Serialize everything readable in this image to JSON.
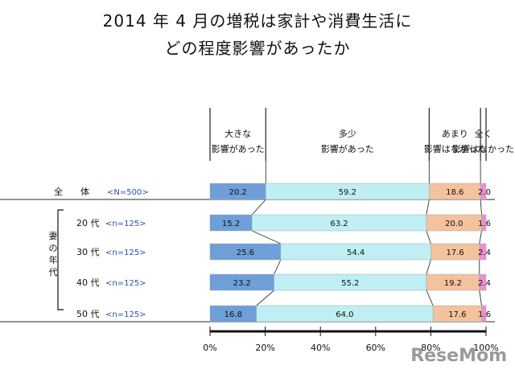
{
  "title_line1": "2014 年 4 月の増税は家計や消費生活に",
  "title_line2": "どの程度影響があったか",
  "watermark": "ReseMom",
  "chart_data": {
    "type": "bar",
    "orientation": "horizontal",
    "stacked": "percent",
    "categories_main": [
      {
        "label": "全　　体",
        "n": "<N=500>"
      },
      {
        "label": "20 代",
        "n": "<n=125>"
      },
      {
        "label": "30 代",
        "n": "<n=125>"
      },
      {
        "label": "40 代",
        "n": "<n=125>"
      },
      {
        "label": "50 代",
        "n": "<n=125>"
      }
    ],
    "group_label": "妻の年代",
    "legend_labels": [
      [
        "大きな",
        "影響があった"
      ],
      [
        "多少",
        "影響があった"
      ],
      [
        "あまり",
        "影響はなかった"
      ],
      [
        "全く",
        "影響はなかった"
      ]
    ],
    "series": [
      {
        "values": [
          20.2,
          15.2,
          25.6,
          23.2,
          16.8
        ],
        "color": "#6f9fd8"
      },
      {
        "values": [
          59.2,
          63.2,
          54.4,
          55.2,
          64.0
        ],
        "color": "#bfeff2"
      },
      {
        "values": [
          18.6,
          20.0,
          17.6,
          19.2,
          17.6
        ],
        "color": "#f4c29c"
      },
      {
        "values": [
          2.0,
          1.6,
          2.4,
          2.4,
          1.6
        ],
        "color": "#ee8fcf"
      }
    ],
    "value_labels": [
      [
        "20.2",
        "59.2",
        "18.6",
        "2.0"
      ],
      [
        "15.2",
        "63.2",
        "20.0",
        "1.6"
      ],
      [
        "25.6",
        "54.4",
        "17.6",
        "2.4"
      ],
      [
        "23.2",
        "55.2",
        "19.2",
        "2.4"
      ],
      [
        "16.8",
        "64.0",
        "17.6",
        "1.6"
      ]
    ],
    "x_ticks": [
      "0%",
      "20%",
      "40%",
      "60%",
      "80%",
      "100%"
    ],
    "xlim": [
      0,
      100
    ]
  }
}
